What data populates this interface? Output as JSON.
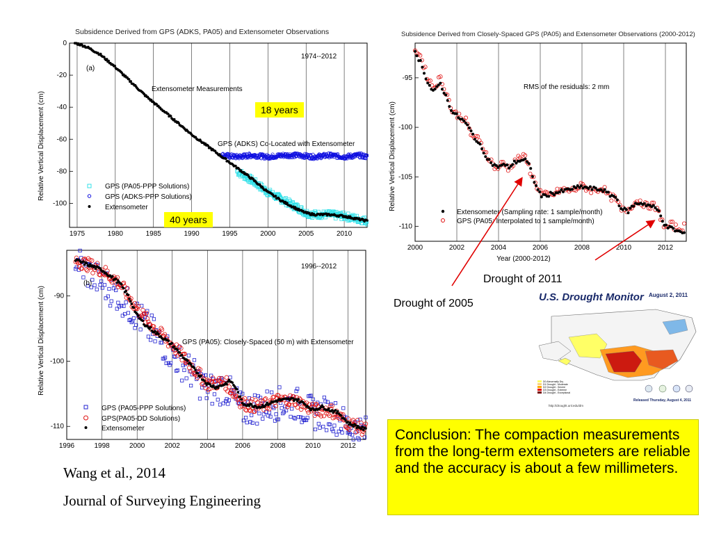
{
  "chart_data": [
    {
      "id": "a",
      "type": "scatter",
      "title": "Subsidence Derived from GPS (ADKS, PA05) and Extensometer Observations",
      "panel_label": "(a)",
      "period": "1974--2012",
      "ylabel": "Relative Vertical Displacement (cm)",
      "xlabel": "",
      "xlim": [
        1974,
        2013
      ],
      "ylim": [
        -115,
        0
      ],
      "xticks": [
        "1975",
        "1980",
        "1985",
        "1990",
        "1995",
        "2000",
        "2005",
        "2010"
      ],
      "yticks": [
        "0",
        "-20",
        "-40",
        "-60",
        "-80",
        "-100"
      ],
      "annotations": [
        "Extensometer Measurements",
        "GPS (ADKS) Co-Located with Extensometer"
      ],
      "legend": [
        "GPS (PA05-PPP Solutions)",
        "GPS (ADKS-PPP Solutions)",
        "Extensometer"
      ],
      "series": [
        {
          "name": "Extensometer",
          "x": [
            1974.7,
            1975.5,
            1976.5,
            1978,
            1980,
            1982,
            1984,
            1986,
            1988,
            1990,
            1992,
            1994,
            1996,
            1998,
            2000,
            2002,
            2004,
            2005,
            2006,
            2008,
            2010,
            2012,
            2013
          ],
          "y": [
            0,
            -1,
            -3,
            -7,
            -15,
            -24,
            -33,
            -41,
            -49,
            -57,
            -64,
            -71,
            -78,
            -85,
            -93,
            -99,
            -104,
            -106,
            -107,
            -107,
            -108,
            -110,
            -111
          ]
        },
        {
          "name": "GPS (ADKS-PPP Solutions)",
          "x": [
            1994,
            1996,
            1998,
            2000,
            2002,
            2004,
            2006,
            2008,
            2010,
            2012,
            2013
          ],
          "y": [
            -70,
            -71,
            -70,
            -71,
            -70,
            -70,
            -71,
            -70,
            -71,
            -70,
            -71
          ]
        },
        {
          "name": "GPS (PA05-PPP Solutions)",
          "x": [
            1996,
            1998,
            2000,
            2002,
            2004,
            2005,
            2006,
            2008,
            2010,
            2012,
            2013
          ],
          "y": [
            -80,
            -86,
            -93,
            -98,
            -103,
            -106,
            -107,
            -107,
            -108,
            -110,
            -111
          ]
        }
      ]
    },
    {
      "id": "b",
      "type": "scatter",
      "title": "",
      "panel_label": "(b)",
      "period": "1996--2012",
      "ylabel": "Relative Vertical Displacement (cm)",
      "xlabel": "",
      "xlim": [
        1996,
        2013
      ],
      "ylim": [
        -112,
        -83
      ],
      "xticks": [
        "1996",
        "1998",
        "2000",
        "2002",
        "2004",
        "2006",
        "2008",
        "2010",
        "2012"
      ],
      "yticks": [
        "-90",
        "-100",
        "-110"
      ],
      "annotations": [
        "GPS (PA05): Closely-Spaced (50 m) with Extensometer"
      ],
      "legend": [
        "GPS (PA05-PPP Solutions)",
        "GPS(PA05-DD Solutions)",
        "Extensometer"
      ],
      "series": [
        {
          "name": "Extensometer",
          "x": [
            1996.5,
            1997,
            1997.5,
            1998,
            1998.5,
            1999,
            1999.5,
            2000,
            2000.5,
            2001,
            2001.5,
            2002,
            2002.5,
            2003,
            2003.5,
            2004,
            2004.5,
            2005,
            2005.3,
            2005.6,
            2006,
            2007,
            2008,
            2009,
            2009.5,
            2010,
            2010.5,
            2011,
            2011.5,
            2012,
            2012.5,
            2013
          ],
          "y": [
            -84.5,
            -85,
            -85.5,
            -86,
            -87,
            -88,
            -90,
            -93,
            -94.5,
            -95.5,
            -96.5,
            -97.5,
            -99,
            -100.5,
            -102,
            -103.5,
            -104,
            -103.5,
            -103,
            -104,
            -106.5,
            -107,
            -106,
            -105.8,
            -106.5,
            -107.5,
            -107,
            -107.5,
            -108,
            -109.5,
            -110,
            -110.5
          ]
        },
        {
          "name": "GPS(PA05-DD Solutions)",
          "x": [
            1996.5,
            1997,
            1998,
            1999,
            2000,
            2001,
            2002,
            2003,
            2004,
            2005,
            2006,
            2007,
            2008,
            2009,
            2010,
            2011,
            2012,
            2013
          ],
          "y": [
            -84.5,
            -85,
            -86,
            -88,
            -92,
            -95,
            -97.5,
            -100.5,
            -103.5,
            -103.2,
            -106.5,
            -107,
            -106,
            -106,
            -107.5,
            -107.5,
            -109.5,
            -110.5
          ]
        },
        {
          "name": "GPS (PA05-PPP Solutions)",
          "x": [
            1996.5,
            1997,
            1998,
            1999,
            2000,
            2001,
            2002,
            2003,
            2004,
            2005,
            2006,
            2007,
            2008,
            2009,
            2010,
            2011,
            2012,
            2013
          ],
          "y": [
            -84,
            -86,
            -88,
            -90,
            -93,
            -96,
            -99,
            -101.5,
            -104.5,
            -104,
            -107.5,
            -107,
            -106.5,
            -106.5,
            -108,
            -108,
            -110,
            -111
          ]
        }
      ]
    },
    {
      "id": "c",
      "type": "scatter",
      "title": "Subsidence Derived from Closely-Spaced GPS (PA05) and Extensometer Observations (2000-2012)",
      "panel_label": "",
      "period": "",
      "ylabel": "Relative Vertical Displacement (cm)",
      "xlabel": "Year (2000-2012)",
      "xlim": [
        2000,
        2013
      ],
      "ylim": [
        -111.5,
        -91.5
      ],
      "xticks": [
        "2000",
        "2002",
        "2004",
        "2006",
        "2008",
        "2010",
        "2012"
      ],
      "yticks": [
        "-95",
        "-100",
        "-105",
        "-110"
      ],
      "annotations": [
        "RMS of the residuals: 2 mm"
      ],
      "legend": [
        "Extensometer (Sampling rate: 1 sample/month)",
        "GPS (PA05: Interpolated to 1 sample/month)"
      ],
      "series": [
        {
          "name": "Extensometer (Sampling rate: 1 sample/month)",
          "x": [
            2000,
            2000.3,
            2000.6,
            2000.9,
            2001.2,
            2001.5,
            2001.8,
            2002.1,
            2002.4,
            2002.7,
            2003,
            2003.3,
            2003.6,
            2003.9,
            2004.2,
            2004.5,
            2004.8,
            2005.1,
            2005.3,
            2005.5,
            2005.8,
            2006.1,
            2006.5,
            2007,
            2007.5,
            2008,
            2008.5,
            2009,
            2009.3,
            2009.6,
            2009.9,
            2010.2,
            2010.5,
            2010.8,
            2011.1,
            2011.4,
            2011.7,
            2012,
            2012.3,
            2012.6,
            2012.9
          ],
          "y": [
            -92.5,
            -93.5,
            -95.5,
            -96.5,
            -95.5,
            -97,
            -98.5,
            -99,
            -99.5,
            -100.5,
            -101.5,
            -102.5,
            -103.5,
            -104,
            -103.8,
            -104,
            -103.5,
            -103.3,
            -103.3,
            -104,
            -106,
            -107,
            -106.7,
            -106.5,
            -106.2,
            -106,
            -106.2,
            -106.3,
            -106.8,
            -107,
            -108.2,
            -108.5,
            -107.8,
            -107.6,
            -107.8,
            -108,
            -108.5,
            -110,
            -110.2,
            -110.5,
            -110.7
          ]
        },
        {
          "name": "GPS (PA05: Interpolated to 1 sample/month)",
          "x": [
            2000,
            2000.3,
            2000.6,
            2000.9,
            2001.2,
            2001.5,
            2001.8,
            2002.1,
            2002.4,
            2002.7,
            2003,
            2003.3,
            2003.6,
            2003.9,
            2004.2,
            2004.5,
            2004.8,
            2005.1,
            2005.3,
            2005.5,
            2005.8,
            2006.1,
            2006.5,
            2007,
            2007.5,
            2008,
            2008.5,
            2009,
            2009.3,
            2009.6,
            2009.9,
            2010.2,
            2010.5,
            2010.8,
            2011.1,
            2011.4,
            2011.7,
            2012,
            2012.3,
            2012.6,
            2012.9
          ],
          "y": [
            -92,
            -93,
            -95,
            -96,
            -95,
            -96.5,
            -98.5,
            -98.8,
            -99.2,
            -100.8,
            -101.2,
            -102.2,
            -103.3,
            -104.2,
            -103.6,
            -104.2,
            -103.3,
            -103,
            -103.1,
            -104.3,
            -105.8,
            -106.8,
            -106.9,
            -106.3,
            -106.4,
            -105.9,
            -106.4,
            -106.1,
            -107,
            -107.2,
            -108.4,
            -108.3,
            -107.6,
            -107.4,
            -108,
            -107.8,
            -108.7,
            -110.2,
            -109.8,
            -110.3,
            -110
          ]
        }
      ]
    }
  ],
  "labels": {
    "years18": "18 years",
    "years40": "40 years",
    "drought2011": "Drought of 2011",
    "drought2005": "Drought of 2005",
    "conclusion": "Conclusion: The compaction measurements from the long-term extensometers are reliable and the accuracy is about a few millimeters.",
    "cite_author": "Wang et al., 2014",
    "cite_journal": "Journal of Surveying Engineering"
  },
  "drought_monitor": {
    "title": "U.S. Drought Monitor",
    "date": "August 2, 2011",
    "released": "Released Thursday, August 4, 2011",
    "url": "http://drought.unl.edu/dm",
    "legend": [
      "D0 Abnormally Dry",
      "D1 Drought - Moderate",
      "D2 Drought - Severe",
      "D3 Drought - Extreme",
      "D4 Drought - Exceptional"
    ]
  },
  "colors": {
    "extensometer": "#000000",
    "gps_adks": "#1010e0",
    "gps_pa05_ppp_a": "#30e0e8",
    "gps_pa05_ppp_b": "#2020d0",
    "gps_dd": "#e01010",
    "highlight": "#ffff00",
    "arrow": "#e00000"
  }
}
